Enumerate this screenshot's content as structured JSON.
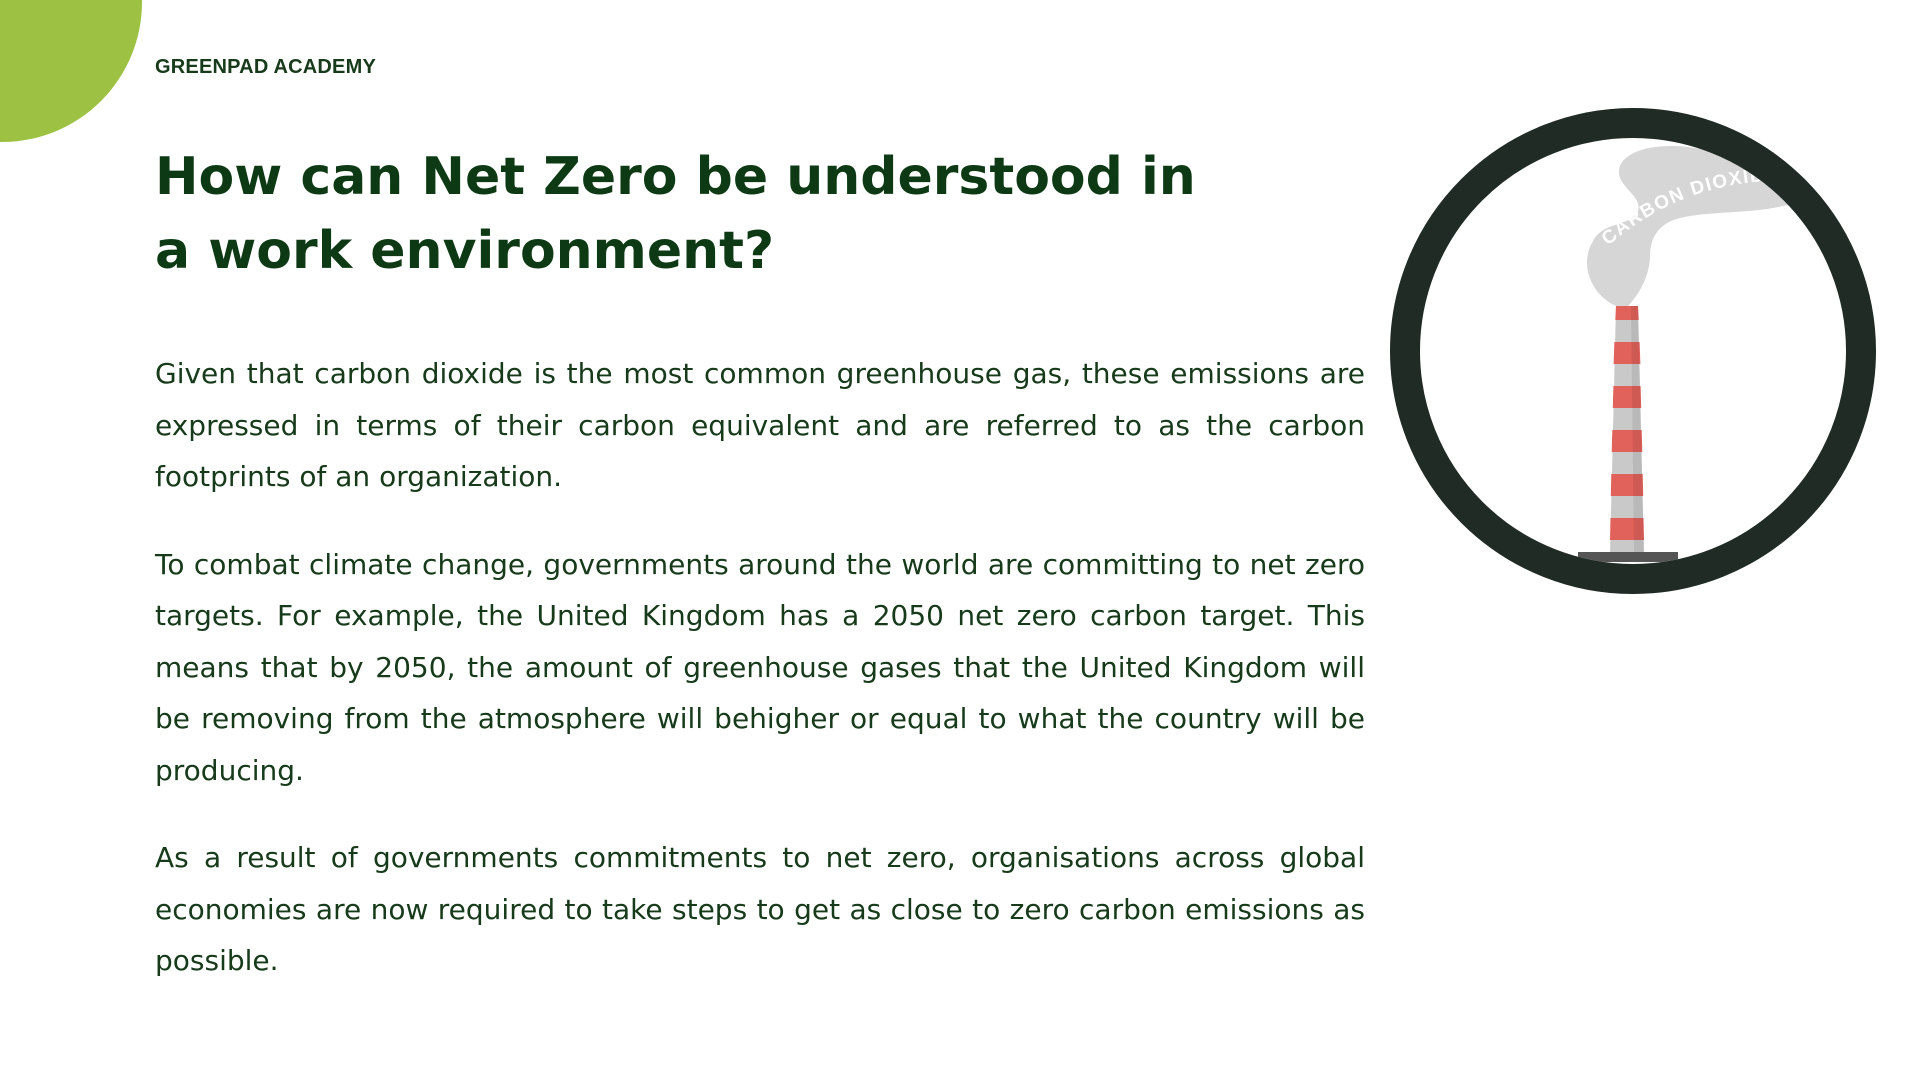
{
  "brand": "GREENPAD ACADEMY",
  "title": "How can Net Zero be understood in a work environment?",
  "paragraphs": [
    "Given that carbon dioxide is the most common greenhouse gas, these emissions are expressed in terms of their carbon equivalent and are referred to as the carbon footprints of an organization.",
    "To combat climate change, governments around the world are committing to net zero targets. For example, the United Kingdom has a 2050 net zero carbon target. This means that by 2050, the amount of greenhouse gases that the United Kingdom will be removing from the atmosphere will behigher or equal to what the country will be producing.",
    "As a result of governments commitments to net zero, organisations across global economies are now required to take steps to get as close to zero carbon emissions as possible."
  ],
  "illustration": {
    "smoke_label": "CARBON DIOXIDE",
    "icon": "factory-chimney-icon",
    "ring_color": "#1f2b24",
    "smoke_color": "#d6d6d6",
    "stripe_colors": [
      "#e0625b",
      "#c9c9c9"
    ]
  },
  "colors": {
    "accent": "#9dc243",
    "heading": "#0d3a14",
    "text": "#163a1a"
  }
}
